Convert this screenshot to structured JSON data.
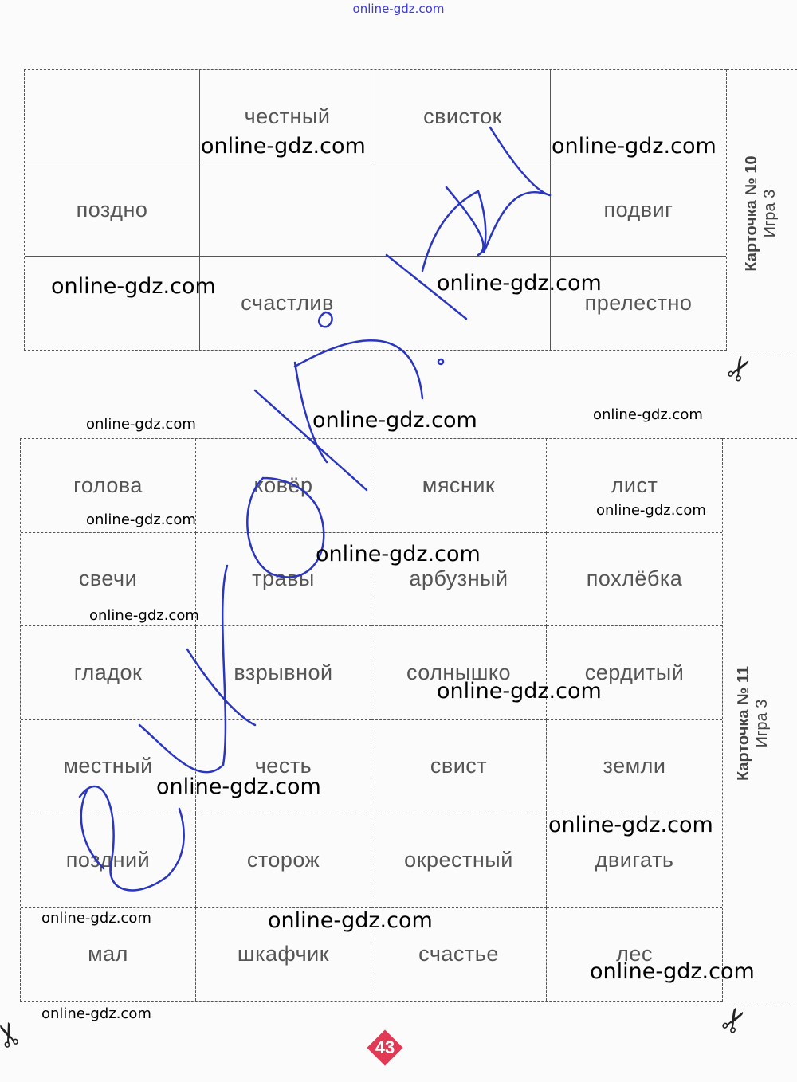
{
  "site_header": "online-gdz.com",
  "card_top": {
    "title": "Карточка № 10",
    "subtitle": "Игра 3",
    "words": [
      "",
      "честный",
      "свисток",
      "",
      "поздно",
      "",
      "",
      "подвиг",
      "",
      "счастлив",
      "",
      "прелестно"
    ]
  },
  "card_bottom": {
    "title": "Карточка № 11",
    "subtitle": "Игра 3",
    "words": [
      "голова",
      "ковёр",
      "мясник",
      "лист",
      "свечи",
      "травы",
      "арбузный",
      "похлёбка",
      "гладок",
      "взрывной",
      "солнышко",
      "сердитый",
      "местный",
      "честь",
      "свист",
      "земли",
      "поздний",
      "сторож",
      "окрестный",
      "двигать",
      "мал",
      "шкафчик",
      "счастье",
      "лес"
    ]
  },
  "watermark": "online-gdz.com",
  "page_number": "43",
  "colors": {
    "ink": "#2a35c0",
    "page_badge": "#e03a55",
    "site_header": "#3a3adf"
  }
}
